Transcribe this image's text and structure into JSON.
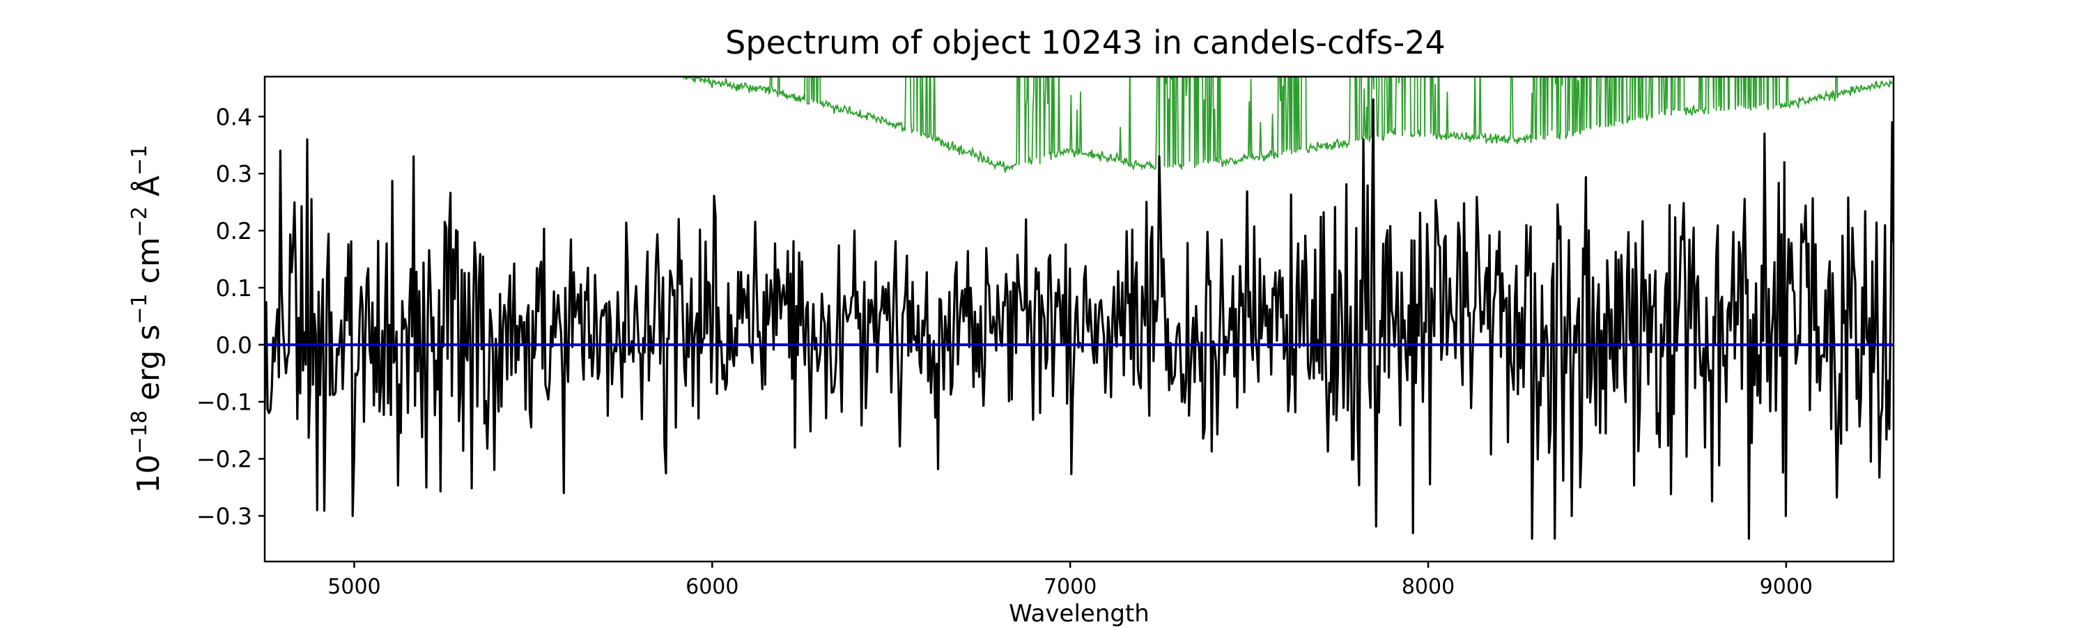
{
  "chart_data": {
    "type": "line",
    "title": "Spectrum of object 10243 in candels-cdfs-24",
    "xlabel": "Wavelength",
    "ylabel": {
      "prefix": "10",
      "prefix_exp": "−18",
      "unit1": " erg s",
      "unit1_exp": "−1",
      "unit2": " cm",
      "unit2_exp": "−2",
      "unit3": " Å",
      "unit3_exp": "−1"
    },
    "xlim": [
      4750,
      9300
    ],
    "ylim": [
      -0.38,
      0.47
    ],
    "xticks": [
      {
        "value": 5000,
        "label": "5000"
      },
      {
        "value": 6000,
        "label": "6000"
      },
      {
        "value": 7000,
        "label": "7000"
      },
      {
        "value": 8000,
        "label": "8000"
      },
      {
        "value": 9000,
        "label": "9000"
      }
    ],
    "yticks": [
      {
        "value": 0.4,
        "label": "0.4"
      },
      {
        "value": 0.3,
        "label": "0.3"
      },
      {
        "value": 0.2,
        "label": "0.2"
      },
      {
        "value": 0.1,
        "label": "0.1"
      },
      {
        "value": 0.0,
        "label": "0.0"
      },
      {
        "value": -0.1,
        "label": "−0.1"
      },
      {
        "value": -0.2,
        "label": "−0.2"
      },
      {
        "value": -0.3,
        "label": "−0.3"
      }
    ],
    "grid": false,
    "series": [
      {
        "role": "flux",
        "color": "#000000",
        "x_start": 4750,
        "x_end": 9300,
        "n": 1150,
        "noise_sigma_blue": 0.14,
        "noise_sigma_mid": 0.09,
        "noise_sigma_red": 0.13,
        "mean": 0.03,
        "features": [
          {
            "x": 4795,
            "y": 0.34
          },
          {
            "x": 4870,
            "y": 0.36
          },
          {
            "x": 4895,
            "y": -0.29
          },
          {
            "x": 4995,
            "y": -0.3
          },
          {
            "x": 5585,
            "y": -0.26
          },
          {
            "x": 5200,
            "y": -0.25
          },
          {
            "x": 7250,
            "y": 0.33
          },
          {
            "x": 7845,
            "y": 0.43
          },
          {
            "x": 7820,
            "y": 0.36
          },
          {
            "x": 8290,
            "y": -0.34
          },
          {
            "x": 8355,
            "y": -0.34
          },
          {
            "x": 8400,
            "y": -0.3
          },
          {
            "x": 8895,
            "y": -0.34
          },
          {
            "x": 9000,
            "y": -0.3
          },
          {
            "x": 9295,
            "y": 0.39
          },
          {
            "x": 8940,
            "y": 0.37
          },
          {
            "x": 8995,
            "y": 0.32
          }
        ]
      },
      {
        "role": "model",
        "color": "#0000cc",
        "value": 0.0
      },
      {
        "role": "sky",
        "color": "#2ca02c",
        "x_start": 5920,
        "x_end": 9300,
        "n": 1400,
        "baseline_points": [
          {
            "x": 5920,
            "y": 0.47
          },
          {
            "x": 6200,
            "y": 0.44
          },
          {
            "x": 6500,
            "y": 0.39
          },
          {
            "x": 6820,
            "y": 0.31
          },
          {
            "x": 7000,
            "y": 0.34
          },
          {
            "x": 7250,
            "y": 0.31
          },
          {
            "x": 7550,
            "y": 0.33
          },
          {
            "x": 7900,
            "y": 0.37
          },
          {
            "x": 8300,
            "y": 0.36
          },
          {
            "x": 8700,
            "y": 0.41
          },
          {
            "x": 9000,
            "y": 0.42
          },
          {
            "x": 9300,
            "y": 0.46
          }
        ],
        "forest_bands": [
          [
            6260,
            6300
          ],
          [
            6540,
            6580
          ],
          [
            6850,
            6960
          ],
          [
            7240,
            7420
          ],
          [
            7580,
            7660
          ],
          [
            7780,
            8020
          ],
          [
            8280,
            8720
          ],
          [
            8760,
            8980
          ]
        ]
      }
    ]
  }
}
